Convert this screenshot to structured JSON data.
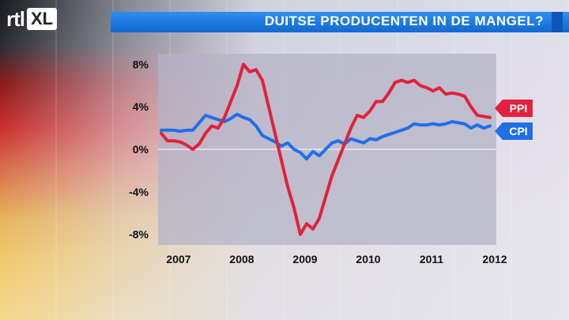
{
  "header": {
    "logo_rtl": "rtl",
    "logo_xl": "XL",
    "title": "DUITSE PRODUCENTEN IN DE MANGEL?"
  },
  "colors": {
    "title_bar": "#1a78e0",
    "ppi": "#e0223c",
    "cpi": "#1e6fe8",
    "plot_bg": "#b9b9c9"
  },
  "chart_data": {
    "type": "line",
    "title": "DUITSE PRODUCENTEN IN DE MANGEL?",
    "xlabel": "",
    "ylabel": "",
    "xlim": [
      2006.95,
      2012.3
    ],
    "ylim": [
      -9,
      9
    ],
    "yticks": [
      8,
      4,
      0,
      -4,
      -8
    ],
    "ytick_labels": [
      "8%",
      "4%",
      "0%",
      "-4%",
      "-8%"
    ],
    "xticks": [
      2007,
      2008,
      2009,
      2010,
      2011,
      2012
    ],
    "xtick_labels": [
      "2007",
      "2008",
      "2009",
      "2010",
      "2011",
      "2012"
    ],
    "grid": false,
    "legend": "end-of-line labels",
    "series": [
      {
        "name": "PPI",
        "x": [
          2007.0,
          2007.1,
          2007.2,
          2007.3,
          2007.4,
          2007.5,
          2007.6,
          2007.7,
          2007.8,
          2007.9,
          2008.0,
          2008.1,
          2008.2,
          2008.3,
          2008.4,
          2008.5,
          2008.6,
          2008.7,
          2008.8,
          2008.9,
          2009.0,
          2009.1,
          2009.2,
          2009.3,
          2009.4,
          2009.5,
          2009.6,
          2009.7,
          2009.8,
          2009.9,
          2010.0,
          2010.1,
          2010.2,
          2010.3,
          2010.4,
          2010.5,
          2010.6,
          2010.7,
          2010.8,
          2010.9,
          2011.0,
          2011.1,
          2011.2,
          2011.3,
          2011.4,
          2011.5,
          2011.6,
          2011.7,
          2011.8,
          2011.9,
          2012.0,
          2012.1,
          2012.2
        ],
        "values": [
          1.5,
          0.8,
          0.8,
          0.7,
          0.4,
          0.0,
          0.5,
          1.5,
          2.2,
          2.0,
          3.0,
          4.5,
          6.0,
          8.0,
          7.3,
          7.5,
          6.5,
          4.0,
          1.5,
          -1.0,
          -3.5,
          -5.5,
          -8.0,
          -7.0,
          -7.5,
          -6.5,
          -4.5,
          -2.5,
          -1.0,
          0.5,
          2.0,
          3.2,
          3.0,
          3.6,
          4.5,
          4.5,
          5.3,
          6.3,
          6.5,
          6.3,
          6.5,
          6.0,
          5.8,
          5.5,
          5.8,
          5.2,
          5.3,
          5.2,
          5.0,
          4.0,
          3.2,
          3.1,
          3.0
        ]
      },
      {
        "name": "CPI",
        "x": [
          2007.0,
          2007.1,
          2007.2,
          2007.3,
          2007.4,
          2007.5,
          2007.6,
          2007.7,
          2007.8,
          2007.9,
          2008.0,
          2008.1,
          2008.2,
          2008.3,
          2008.4,
          2008.5,
          2008.6,
          2008.7,
          2008.8,
          2008.9,
          2009.0,
          2009.1,
          2009.2,
          2009.3,
          2009.4,
          2009.5,
          2009.6,
          2009.7,
          2009.8,
          2009.9,
          2010.0,
          2010.1,
          2010.2,
          2010.3,
          2010.4,
          2010.5,
          2010.6,
          2010.7,
          2010.8,
          2010.9,
          2011.0,
          2011.1,
          2011.2,
          2011.3,
          2011.4,
          2011.5,
          2011.6,
          2011.7,
          2011.8,
          2011.9,
          2012.0,
          2012.1,
          2012.2
        ],
        "values": [
          1.8,
          1.8,
          1.8,
          1.7,
          1.8,
          1.8,
          2.5,
          3.2,
          3.0,
          2.8,
          2.6,
          2.9,
          3.3,
          3.0,
          2.8,
          2.2,
          1.3,
          1.0,
          0.7,
          0.3,
          0.6,
          0.0,
          -0.3,
          -0.9,
          -0.2,
          -0.6,
          0.0,
          0.6,
          0.8,
          0.5,
          1.0,
          0.8,
          0.6,
          1.0,
          0.9,
          1.2,
          1.4,
          1.6,
          1.8,
          2.0,
          2.4,
          2.3,
          2.3,
          2.4,
          2.3,
          2.4,
          2.6,
          2.5,
          2.4,
          2.0,
          2.3,
          2.0,
          2.2
        ]
      }
    ]
  }
}
